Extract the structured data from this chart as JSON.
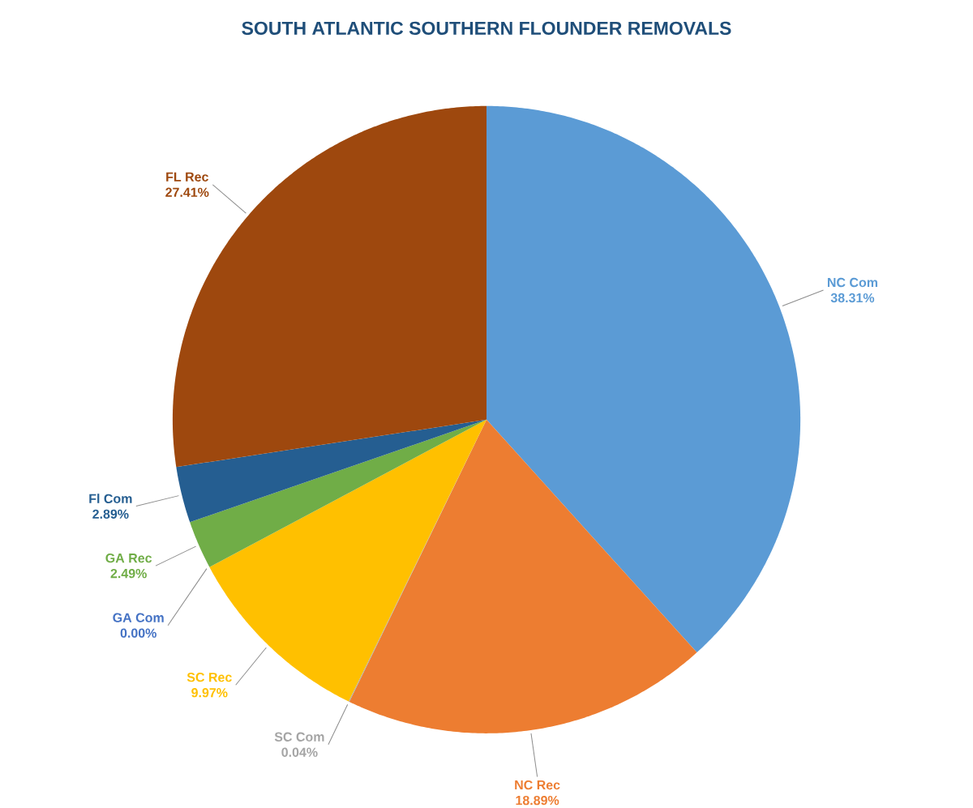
{
  "chart_data": {
    "type": "pie",
    "title": "SOUTH ATLANTIC SOUTHERN FLOUNDER REMOVALS",
    "categories": [
      "NC Com",
      "NC Rec",
      "SC Com",
      "SC Rec",
      "GA Com",
      "GA Rec",
      "Fl Com",
      "FL Rec"
    ],
    "values": [
      38.31,
      18.89,
      0.04,
      9.97,
      0.0,
      2.49,
      2.89,
      27.41
    ],
    "value_labels": [
      "38.31%",
      "18.89%",
      "0.04%",
      "9.97%",
      "0.00%",
      "2.49%",
      "2.89%",
      "27.41%"
    ],
    "colors": [
      "#5b9bd5",
      "#ed7d31",
      "#a5a5a5",
      "#ffc000",
      "#4472c4",
      "#70ad47",
      "#255e91",
      "#9e480e"
    ]
  }
}
